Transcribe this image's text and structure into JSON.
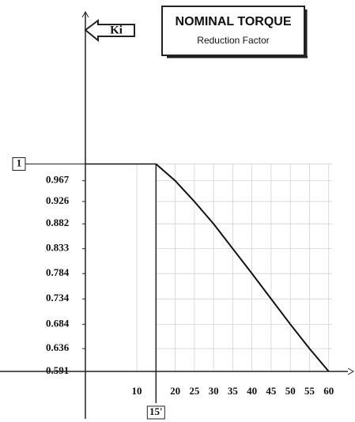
{
  "chart_data": {
    "type": "line",
    "title": "NOMINAL TORQUE",
    "subtitle": "Reduction Factor",
    "y_label": "Ki",
    "x": [
      15,
      20,
      25,
      30,
      35,
      40,
      45,
      50,
      55,
      60
    ],
    "series": [
      {
        "color": "#111111",
        "values": [
          1,
          0.967,
          0.926,
          0.882,
          0.833,
          0.784,
          0.734,
          0.684,
          0.636,
          0.591
        ]
      }
    ],
    "xlim": [
      -3.4,
      65
    ],
    "ylim": [
      0.591,
      1.3
    ],
    "xticks": [
      10,
      {
        "value": 15,
        "label": "15'"
      },
      20,
      25,
      30,
      35,
      40,
      45,
      50,
      55,
      60
    ],
    "yticks": [
      1,
      0.967,
      0.926,
      0.882,
      0.833,
      0.784,
      0.734,
      0.684,
      0.636,
      0.591
    ],
    "grid": true
  }
}
